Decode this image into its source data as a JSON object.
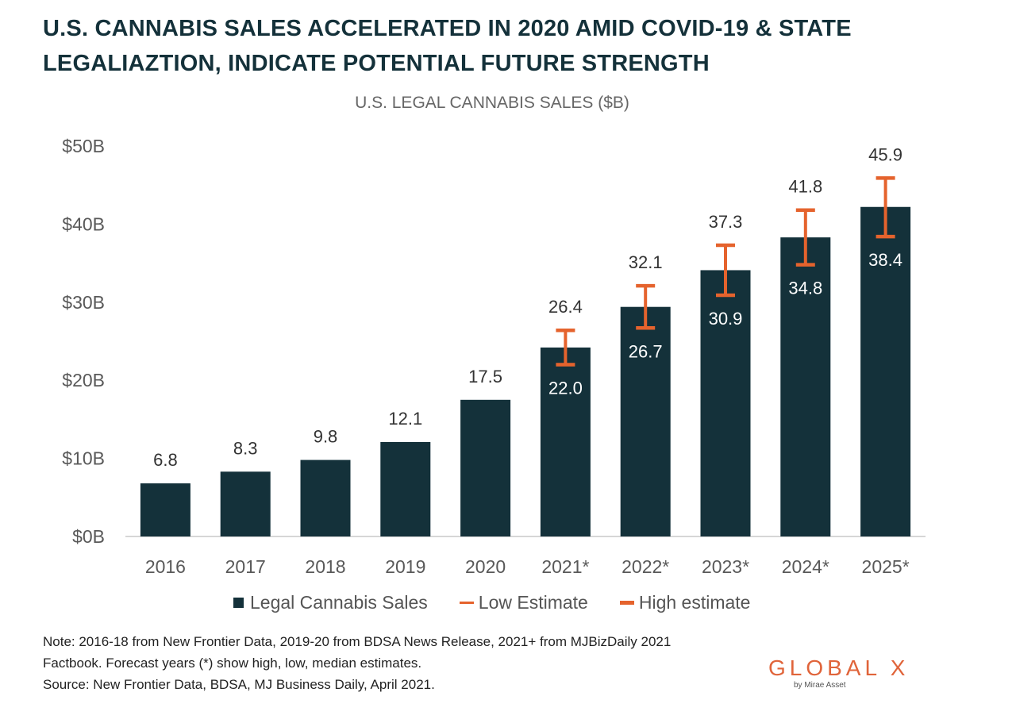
{
  "header": {
    "line1": "U.S. CANNABIS SALES ACCELERATED IN 2020 AMID COVID-19 & STATE",
    "line2": "LEGALIAZTION, INDICATE POTENTIAL FUTURE STRENGTH"
  },
  "chart_data": {
    "type": "bar",
    "title": "U.S. LEGAL CANNABIS SALES ($B)",
    "xlabel": "",
    "ylabel": "",
    "ylim": [
      0,
      50
    ],
    "yticks": [
      0,
      10,
      20,
      30,
      40,
      50
    ],
    "ytick_labels": [
      "$0B",
      "$10B",
      "$20B",
      "$30B",
      "$40B",
      "$50B"
    ],
    "categories": [
      "2016",
      "2017",
      "2018",
      "2019",
      "2020",
      "2021*",
      "2022*",
      "2023*",
      "2024*",
      "2025*"
    ],
    "series": [
      {
        "name": "Legal Cannabis Sales",
        "values": [
          6.8,
          8.3,
          9.8,
          12.1,
          17.5,
          24.2,
          29.4,
          34.1,
          38.3,
          42.2
        ]
      },
      {
        "name": "Low Estimate",
        "values": [
          null,
          null,
          null,
          null,
          null,
          22.0,
          26.7,
          30.9,
          34.8,
          38.4
        ]
      },
      {
        "name": "High estimate",
        "values": [
          null,
          null,
          null,
          null,
          null,
          26.4,
          32.1,
          37.3,
          41.8,
          45.9
        ]
      }
    ],
    "top_labels": [
      "6.8",
      "8.3",
      "9.8",
      "12.1",
      "17.5",
      "26.4",
      "32.1",
      "37.3",
      "41.8",
      "45.9"
    ],
    "inner_labels": [
      null,
      null,
      null,
      null,
      null,
      "22.0",
      "26.7",
      "30.9",
      "34.8",
      "38.4"
    ],
    "grid": false,
    "legend_position": "bottom",
    "colors": {
      "bar": "#14313a",
      "error": "#e5632d",
      "axis_text": "#595959",
      "label_text": "#333333"
    }
  },
  "legend": {
    "sales": "Legal Cannabis Sales",
    "low": "Low Estimate",
    "high": "High estimate"
  },
  "notes": {
    "line1": "Note: 2016-18 from New Frontier Data, 2019-20 from BDSA News Release, 2021+ from MJBizDaily 2021",
    "line2": "Factbook. Forecast years (*) show high, low, median estimates.",
    "line3": "Source: New Frontier Data, BDSA, MJ Business Daily, April 2021."
  },
  "logo": {
    "main": "GLOBAL X",
    "sub": "by Mirae Asset"
  }
}
